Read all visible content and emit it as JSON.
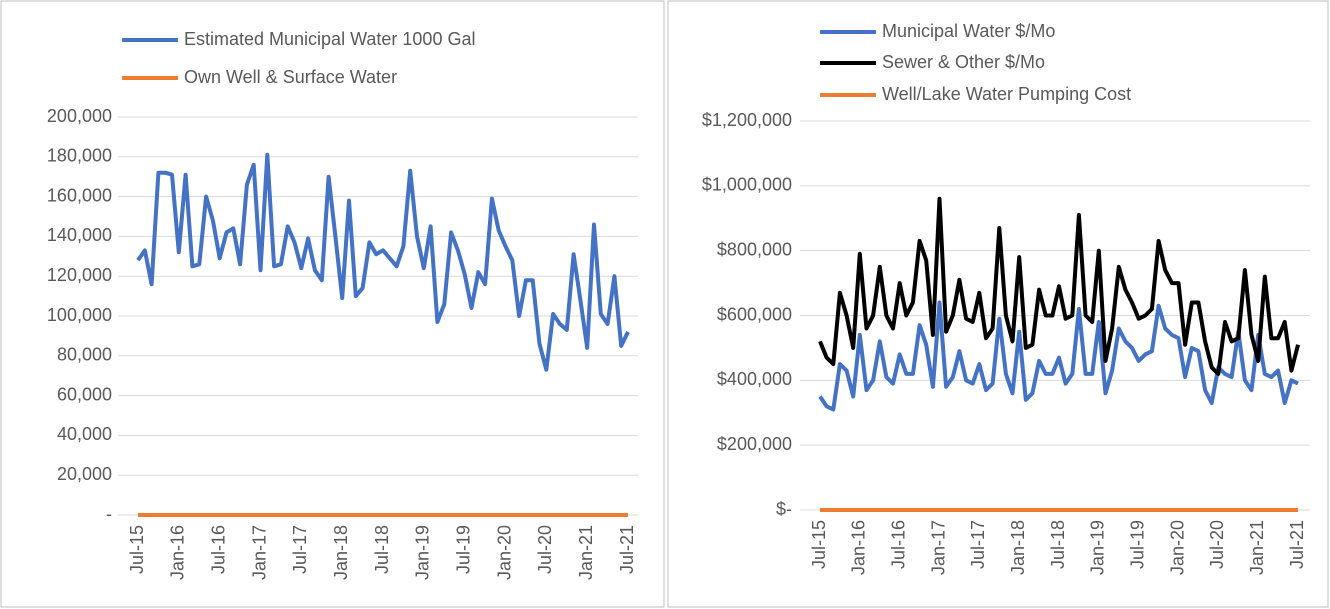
{
  "chart_data": [
    {
      "type": "line",
      "categories": [
        "Jul-15",
        null,
        null,
        null,
        null,
        null,
        "Jan-16",
        null,
        null,
        null,
        null,
        null,
        "Jul-16",
        null,
        null,
        null,
        null,
        null,
        "Jan-17",
        null,
        null,
        null,
        null,
        null,
        "Jul-17",
        null,
        null,
        null,
        null,
        null,
        "Jan-18",
        null,
        null,
        null,
        null,
        null,
        "Jul-18",
        null,
        null,
        null,
        null,
        null,
        "Jan-19",
        null,
        null,
        null,
        null,
        null,
        "Jul-19",
        null,
        null,
        null,
        null,
        null,
        "Jan-20",
        null,
        null,
        null,
        null,
        null,
        "Jul-20",
        null,
        null,
        null,
        null,
        null,
        "Jan-21",
        null,
        null,
        null,
        null,
        null,
        "Jul-21"
      ],
      "series": [
        {
          "name": "Estimated Municipal Water 1000 Gal",
          "color": "#4472c4",
          "values": [
            128000,
            133000,
            116000,
            172000,
            172000,
            171000,
            132000,
            171000,
            125000,
            126000,
            160000,
            148000,
            129000,
            142000,
            144000,
            126000,
            166000,
            176000,
            123000,
            181000,
            125000,
            126000,
            145000,
            137000,
            124000,
            139000,
            123000,
            118000,
            170000,
            140000,
            109000,
            158000,
            110000,
            114000,
            137000,
            131000,
            133000,
            129000,
            125000,
            135000,
            173000,
            140000,
            124000,
            145000,
            97000,
            106000,
            142000,
            133000,
            121000,
            104000,
            122000,
            116000,
            159000,
            143000,
            135000,
            128000,
            100000,
            118000,
            118000,
            86000,
            73000,
            101000,
            96000,
            93000,
            131000,
            108000,
            84000,
            146000,
            101000,
            96000,
            120000,
            85000,
            92000
          ]
        },
        {
          "name": "Own Well & Surface Water",
          "color": "#ed7d31",
          "values": [
            0,
            0,
            0,
            0,
            0,
            0,
            0,
            0,
            0,
            0,
            0,
            0,
            0,
            0,
            0,
            0,
            0,
            0,
            0,
            0,
            0,
            0,
            0,
            0,
            0,
            0,
            0,
            0,
            0,
            0,
            0,
            0,
            0,
            0,
            0,
            0,
            0,
            0,
            0,
            0,
            0,
            0,
            0,
            0,
            0,
            0,
            0,
            0,
            0,
            0,
            0,
            0,
            0,
            0,
            0,
            0,
            0,
            0,
            0,
            0,
            0,
            0,
            0,
            0,
            0,
            0,
            0,
            0,
            0,
            0,
            0,
            0,
            0
          ]
        }
      ],
      "ylim": [
        0,
        200000
      ],
      "yticks": [
        {
          "value": 0,
          "label": "-"
        },
        {
          "value": 20000,
          "label": "20,000"
        },
        {
          "value": 40000,
          "label": "40,000"
        },
        {
          "value": 60000,
          "label": "60,000"
        },
        {
          "value": 80000,
          "label": "80,000"
        },
        {
          "value": 100000,
          "label": "100,000"
        },
        {
          "value": 120000,
          "label": "120,000"
        },
        {
          "value": 140000,
          "label": "140,000"
        },
        {
          "value": 160000,
          "label": "160,000"
        },
        {
          "value": 180000,
          "label": "180,000"
        },
        {
          "value": 200000,
          "label": "200,000"
        }
      ],
      "grid": true
    },
    {
      "type": "line",
      "categories": [
        "Jul-15",
        null,
        null,
        null,
        null,
        null,
        "Jan-16",
        null,
        null,
        null,
        null,
        null,
        "Jul-16",
        null,
        null,
        null,
        null,
        null,
        "Jan-17",
        null,
        null,
        null,
        null,
        null,
        "Jul-17",
        null,
        null,
        null,
        null,
        null,
        "Jan-18",
        null,
        null,
        null,
        null,
        null,
        "Jul-18",
        null,
        null,
        null,
        null,
        null,
        "Jan-19",
        null,
        null,
        null,
        null,
        null,
        "Jul-19",
        null,
        null,
        null,
        null,
        null,
        "Jan-20",
        null,
        null,
        null,
        null,
        null,
        "Jul-20",
        null,
        null,
        null,
        null,
        null,
        "Jan-21",
        null,
        null,
        null,
        null,
        null,
        "Jul-21"
      ],
      "series": [
        {
          "name": "Municipal Water $/Mo",
          "color": "#4472c4",
          "values": [
            350000,
            320000,
            310000,
            450000,
            430000,
            350000,
            540000,
            370000,
            400000,
            520000,
            410000,
            390000,
            480000,
            420000,
            420000,
            570000,
            510000,
            380000,
            640000,
            380000,
            410000,
            490000,
            400000,
            390000,
            450000,
            370000,
            390000,
            590000,
            420000,
            360000,
            550000,
            340000,
            360000,
            460000,
            420000,
            420000,
            470000,
            390000,
            420000,
            620000,
            420000,
            420000,
            580000,
            360000,
            430000,
            560000,
            520000,
            500000,
            460000,
            480000,
            490000,
            630000,
            560000,
            540000,
            530000,
            410000,
            500000,
            490000,
            370000,
            330000,
            440000,
            420000,
            410000,
            550000,
            400000,
            370000,
            540000,
            420000,
            410000,
            430000,
            330000,
            400000,
            390000
          ]
        },
        {
          "name": "Sewer & Other $/Mo",
          "color": "#000000",
          "values": [
            520000,
            470000,
            450000,
            670000,
            600000,
            500000,
            790000,
            560000,
            600000,
            750000,
            600000,
            560000,
            700000,
            600000,
            640000,
            830000,
            770000,
            540000,
            960000,
            550000,
            600000,
            710000,
            590000,
            580000,
            670000,
            530000,
            560000,
            870000,
            600000,
            520000,
            780000,
            500000,
            510000,
            680000,
            600000,
            600000,
            690000,
            590000,
            600000,
            910000,
            600000,
            580000,
            800000,
            460000,
            560000,
            750000,
            680000,
            640000,
            590000,
            600000,
            620000,
            830000,
            740000,
            700000,
            700000,
            510000,
            640000,
            640000,
            520000,
            440000,
            420000,
            580000,
            520000,
            530000,
            740000,
            540000,
            460000,
            720000,
            530000,
            530000,
            580000,
            430000,
            510000
          ]
        },
        {
          "name": "Well/Lake Water Pumping Cost",
          "color": "#ed7d31",
          "values": [
            0,
            0,
            0,
            0,
            0,
            0,
            0,
            0,
            0,
            0,
            0,
            0,
            0,
            0,
            0,
            0,
            0,
            0,
            0,
            0,
            0,
            0,
            0,
            0,
            0,
            0,
            0,
            0,
            0,
            0,
            0,
            0,
            0,
            0,
            0,
            0,
            0,
            0,
            0,
            0,
            0,
            0,
            0,
            0,
            0,
            0,
            0,
            0,
            0,
            0,
            0,
            0,
            0,
            0,
            0,
            0,
            0,
            0,
            0,
            0,
            0,
            0,
            0,
            0,
            0,
            0,
            0,
            0,
            0,
            0,
            0,
            0,
            0
          ]
        }
      ],
      "ylim": [
        0,
        1200000
      ],
      "yticks": [
        {
          "value": 0,
          "label": "$-"
        },
        {
          "value": 200000,
          "label": "$200,000"
        },
        {
          "value": 400000,
          "label": "$400,000"
        },
        {
          "value": 600000,
          "label": "$600,000"
        },
        {
          "value": 800000,
          "label": "$800,000"
        },
        {
          "value": 1000000,
          "label": "$1,000,000"
        },
        {
          "value": 1200000,
          "label": "$1,200,000"
        }
      ],
      "grid": true
    }
  ]
}
